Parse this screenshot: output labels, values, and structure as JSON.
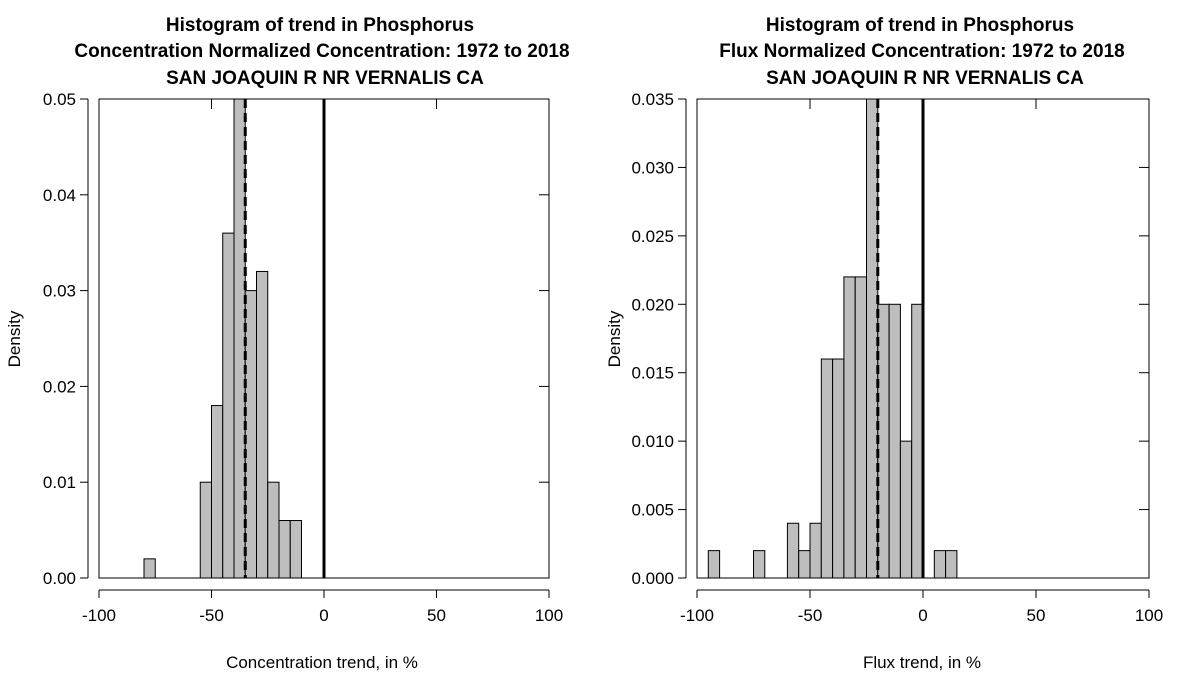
{
  "colors": {
    "bar_fill": "#bebebe",
    "stroke": "#000000",
    "background": "#ffffff"
  },
  "chart_data": [
    {
      "type": "bar",
      "subtype": "histogram",
      "title_lines": [
        "Histogram of trend in Phosphorus",
        "Concentration Normalized Concentration: 1972 to 2018",
        "SAN JOAQUIN R NR VERNALIS CA"
      ],
      "xlabel": "Concentration trend, in %",
      "ylabel": "Density",
      "xlim": [
        -100,
        100
      ],
      "ylim": [
        0,
        0.05
      ],
      "xticks": [
        -100,
        -50,
        0,
        50,
        100
      ],
      "xtick_labels": [
        "-100",
        "-50",
        "0",
        "50",
        "100"
      ],
      "yticks": [
        0,
        0.01,
        0.02,
        0.03,
        0.04,
        0.05
      ],
      "ytick_labels": [
        "0.00",
        "0.01",
        "0.02",
        "0.03",
        "0.04",
        "0.05"
      ],
      "bin_width": 5,
      "bins": [
        {
          "x0": -80,
          "density": 0.002
        },
        {
          "x0": -55,
          "density": 0.01
        },
        {
          "x0": -50,
          "density": 0.018
        },
        {
          "x0": -45,
          "density": 0.036
        },
        {
          "x0": -40,
          "density": 0.05
        },
        {
          "x0": -35,
          "density": 0.03
        },
        {
          "x0": -30,
          "density": 0.032
        },
        {
          "x0": -25,
          "density": 0.01
        },
        {
          "x0": -20,
          "density": 0.006
        },
        {
          "x0": -15,
          "density": 0.006
        }
      ],
      "reference_lines": [
        {
          "x": 0,
          "style": "solid"
        },
        {
          "x": -35,
          "style": "dashed"
        }
      ],
      "grid": false,
      "legend": "none"
    },
    {
      "type": "bar",
      "subtype": "histogram",
      "title_lines": [
        "Histogram of trend in Phosphorus",
        "Flux Normalized Concentration: 1972 to 2018",
        "SAN JOAQUIN R NR VERNALIS CA"
      ],
      "xlabel": "Flux trend, in %",
      "ylabel": "Density",
      "xlim": [
        -100,
        100
      ],
      "ylim": [
        0,
        0.035
      ],
      "xticks": [
        -100,
        -50,
        0,
        50,
        100
      ],
      "xtick_labels": [
        "-100",
        "-50",
        "0",
        "50",
        "100"
      ],
      "yticks": [
        0,
        0.005,
        0.01,
        0.015,
        0.02,
        0.025,
        0.03,
        0.035
      ],
      "ytick_labels": [
        "0.000",
        "0.005",
        "0.010",
        "0.015",
        "0.020",
        "0.025",
        "0.030",
        "0.035"
      ],
      "bin_width": 5,
      "bins": [
        {
          "x0": -95,
          "density": 0.002
        },
        {
          "x0": -75,
          "density": 0.002
        },
        {
          "x0": -60,
          "density": 0.004
        },
        {
          "x0": -55,
          "density": 0.002
        },
        {
          "x0": -50,
          "density": 0.004
        },
        {
          "x0": -45,
          "density": 0.016
        },
        {
          "x0": -40,
          "density": 0.016
        },
        {
          "x0": -35,
          "density": 0.022
        },
        {
          "x0": -30,
          "density": 0.022
        },
        {
          "x0": -25,
          "density": 0.036
        },
        {
          "x0": -20,
          "density": 0.02
        },
        {
          "x0": -15,
          "density": 0.02
        },
        {
          "x0": -10,
          "density": 0.01
        },
        {
          "x0": -5,
          "density": 0.02
        },
        {
          "x0": 5,
          "density": 0.002
        },
        {
          "x0": 10,
          "density": 0.002
        }
      ],
      "reference_lines": [
        {
          "x": 0,
          "style": "solid"
        },
        {
          "x": -20,
          "style": "dashed"
        }
      ],
      "grid": false,
      "legend": "none"
    }
  ]
}
